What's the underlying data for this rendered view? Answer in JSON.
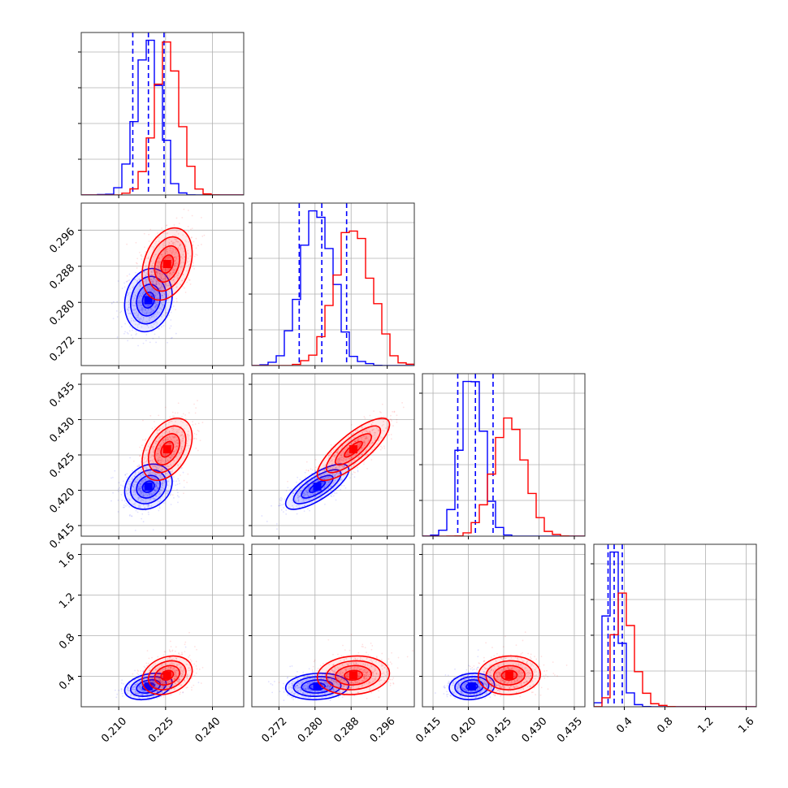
{
  "chart_data": {
    "type": "corner",
    "grid": true,
    "parameters": [
      {
        "index": 0,
        "range": [
          0.198,
          0.25
        ],
        "ticks": [
          "0.210",
          "0.225",
          "0.240"
        ]
      },
      {
        "index": 1,
        "range": [
          0.266,
          0.302
        ],
        "ticks": [
          "0.272",
          "0.280",
          "0.288",
          "0.296"
        ]
      },
      {
        "index": 2,
        "range": [
          0.4135,
          0.4365
        ],
        "ticks": [
          "0.415",
          "0.420",
          "0.425",
          "0.430",
          "0.435"
        ]
      },
      {
        "index": 3,
        "range": [
          0.1,
          1.7
        ],
        "ticks": [
          "0.4",
          "0.8",
          "1.2",
          "1.6"
        ]
      }
    ],
    "series": [
      {
        "name": "blue",
        "color": "#0000ff",
        "means": [
          0.2195,
          0.2805,
          0.4205,
          0.3
        ],
        "sds": [
          0.0038,
          0.0035,
          0.0016,
          0.065
        ],
        "skews": [
          0,
          0,
          0,
          0.5
        ],
        "correlations": {
          "1-0": 0.15,
          "2-0": 0.2,
          "2-1": 0.75,
          "3-0": 0.3,
          "3-1": 0.1,
          "3-2": 0.1
        },
        "quantiles": {
          "0": [
            0.2145,
            0.2195,
            0.2245
          ],
          "1": [
            0.2765,
            0.2815,
            0.287
          ],
          "2": [
            0.4185,
            0.421,
            0.4235
          ],
          "3": [
            0.24,
            0.3,
            0.38
          ]
        },
        "hist_peak_bins": {
          "0": "0.2195",
          "1": "0.2805",
          "2": "0.4195",
          "3": "0.30"
        }
      },
      {
        "name": "red",
        "color": "#ff0000",
        "means": [
          0.2255,
          0.2885,
          0.4258,
          0.41
        ],
        "sds": [
          0.004,
          0.004,
          0.0022,
          0.095
        ],
        "skews": [
          0,
          0,
          0,
          0.5
        ],
        "correlations": {
          "1-0": 0.3,
          "2-0": 0.4,
          "2-1": 0.8,
          "3-0": 0.25,
          "3-1": 0.1,
          "3-2": 0.05
        },
        "quantiles": null,
        "hist_peak_bins": {
          "0": "0.2260",
          "1": "0.2885",
          "2": "0.4260",
          "3": "0.38"
        }
      }
    ],
    "contour_levels_sigma": [
      0.5,
      1.0,
      1.5,
      2.0
    ],
    "points_per_panel": {
      "blue": 650,
      "red": 650
    }
  }
}
